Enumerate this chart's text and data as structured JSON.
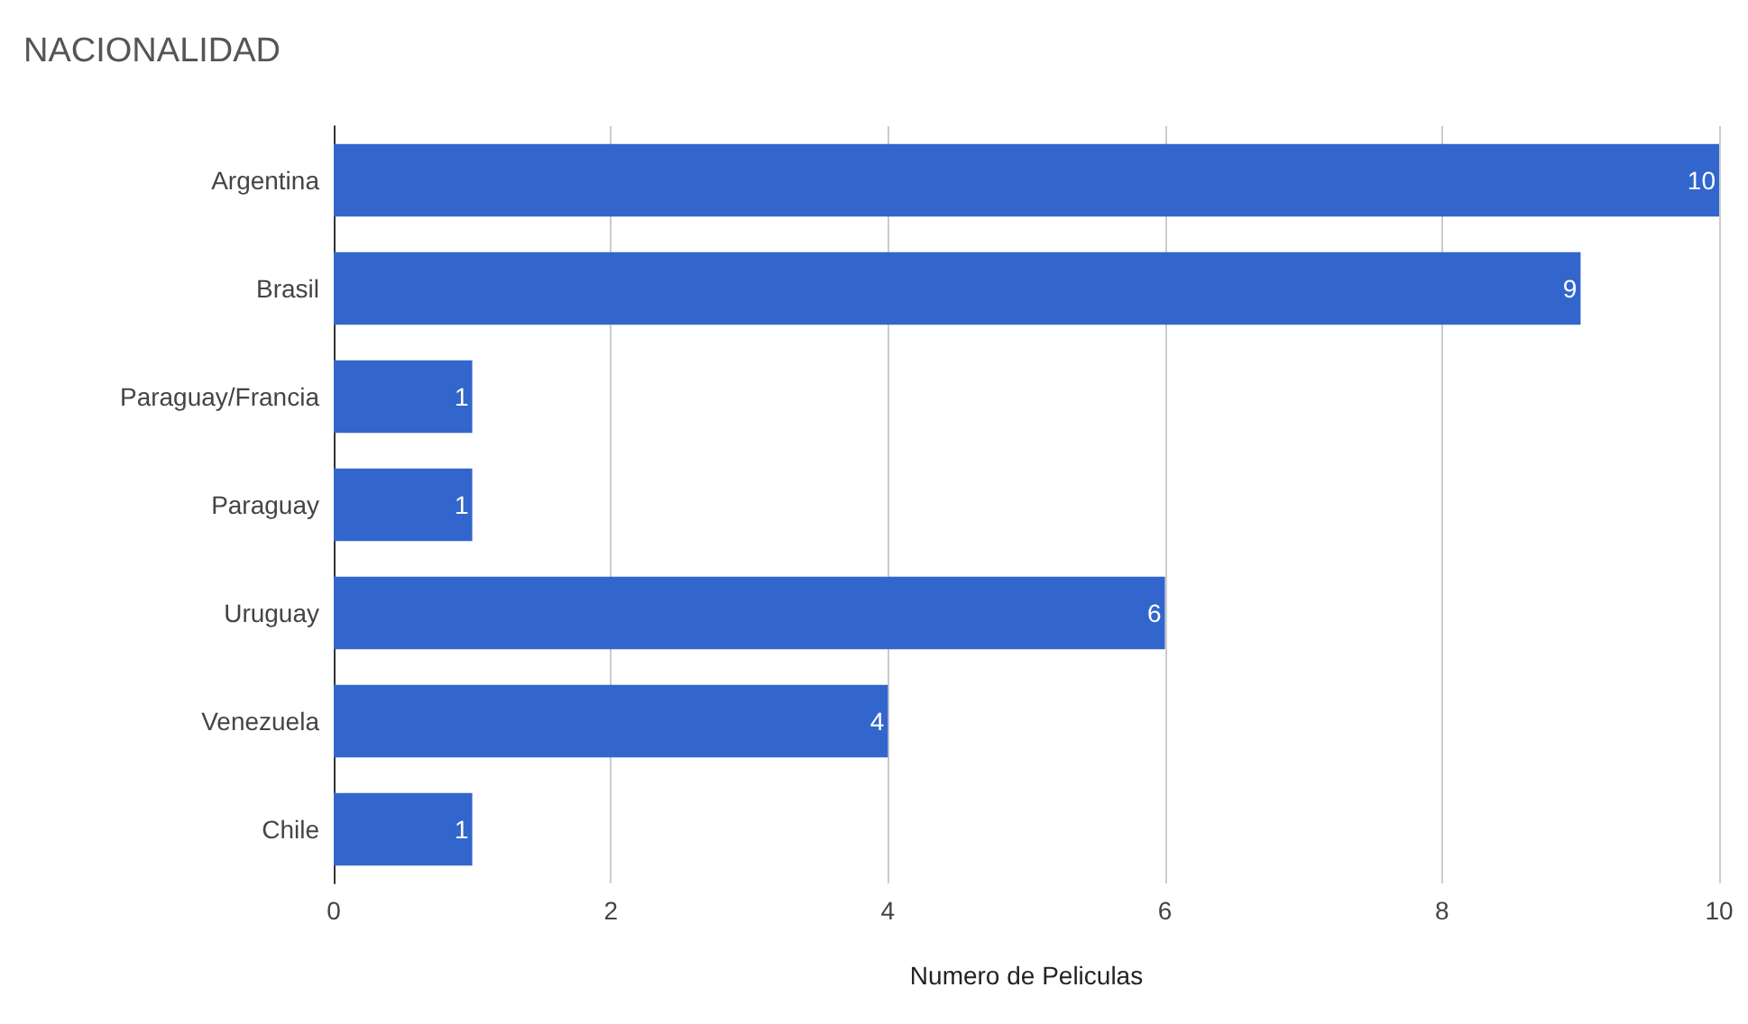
{
  "chart_data": {
    "type": "bar",
    "orientation": "horizontal",
    "title": "NACIONALIDAD",
    "xlabel": "Numero de Peliculas",
    "categories": [
      "Argentina",
      "Brasil",
      "Paraguay/Francia",
      "Paraguay",
      "Uruguay",
      "Venezuela",
      "Chile"
    ],
    "values": [
      10,
      9,
      1,
      1,
      6,
      4,
      1
    ],
    "color": "#3366cc",
    "xlim": [
      0,
      10
    ],
    "xticks": [
      0,
      2,
      4,
      6,
      8,
      10
    ],
    "grid": "x",
    "data_labels": true
  }
}
